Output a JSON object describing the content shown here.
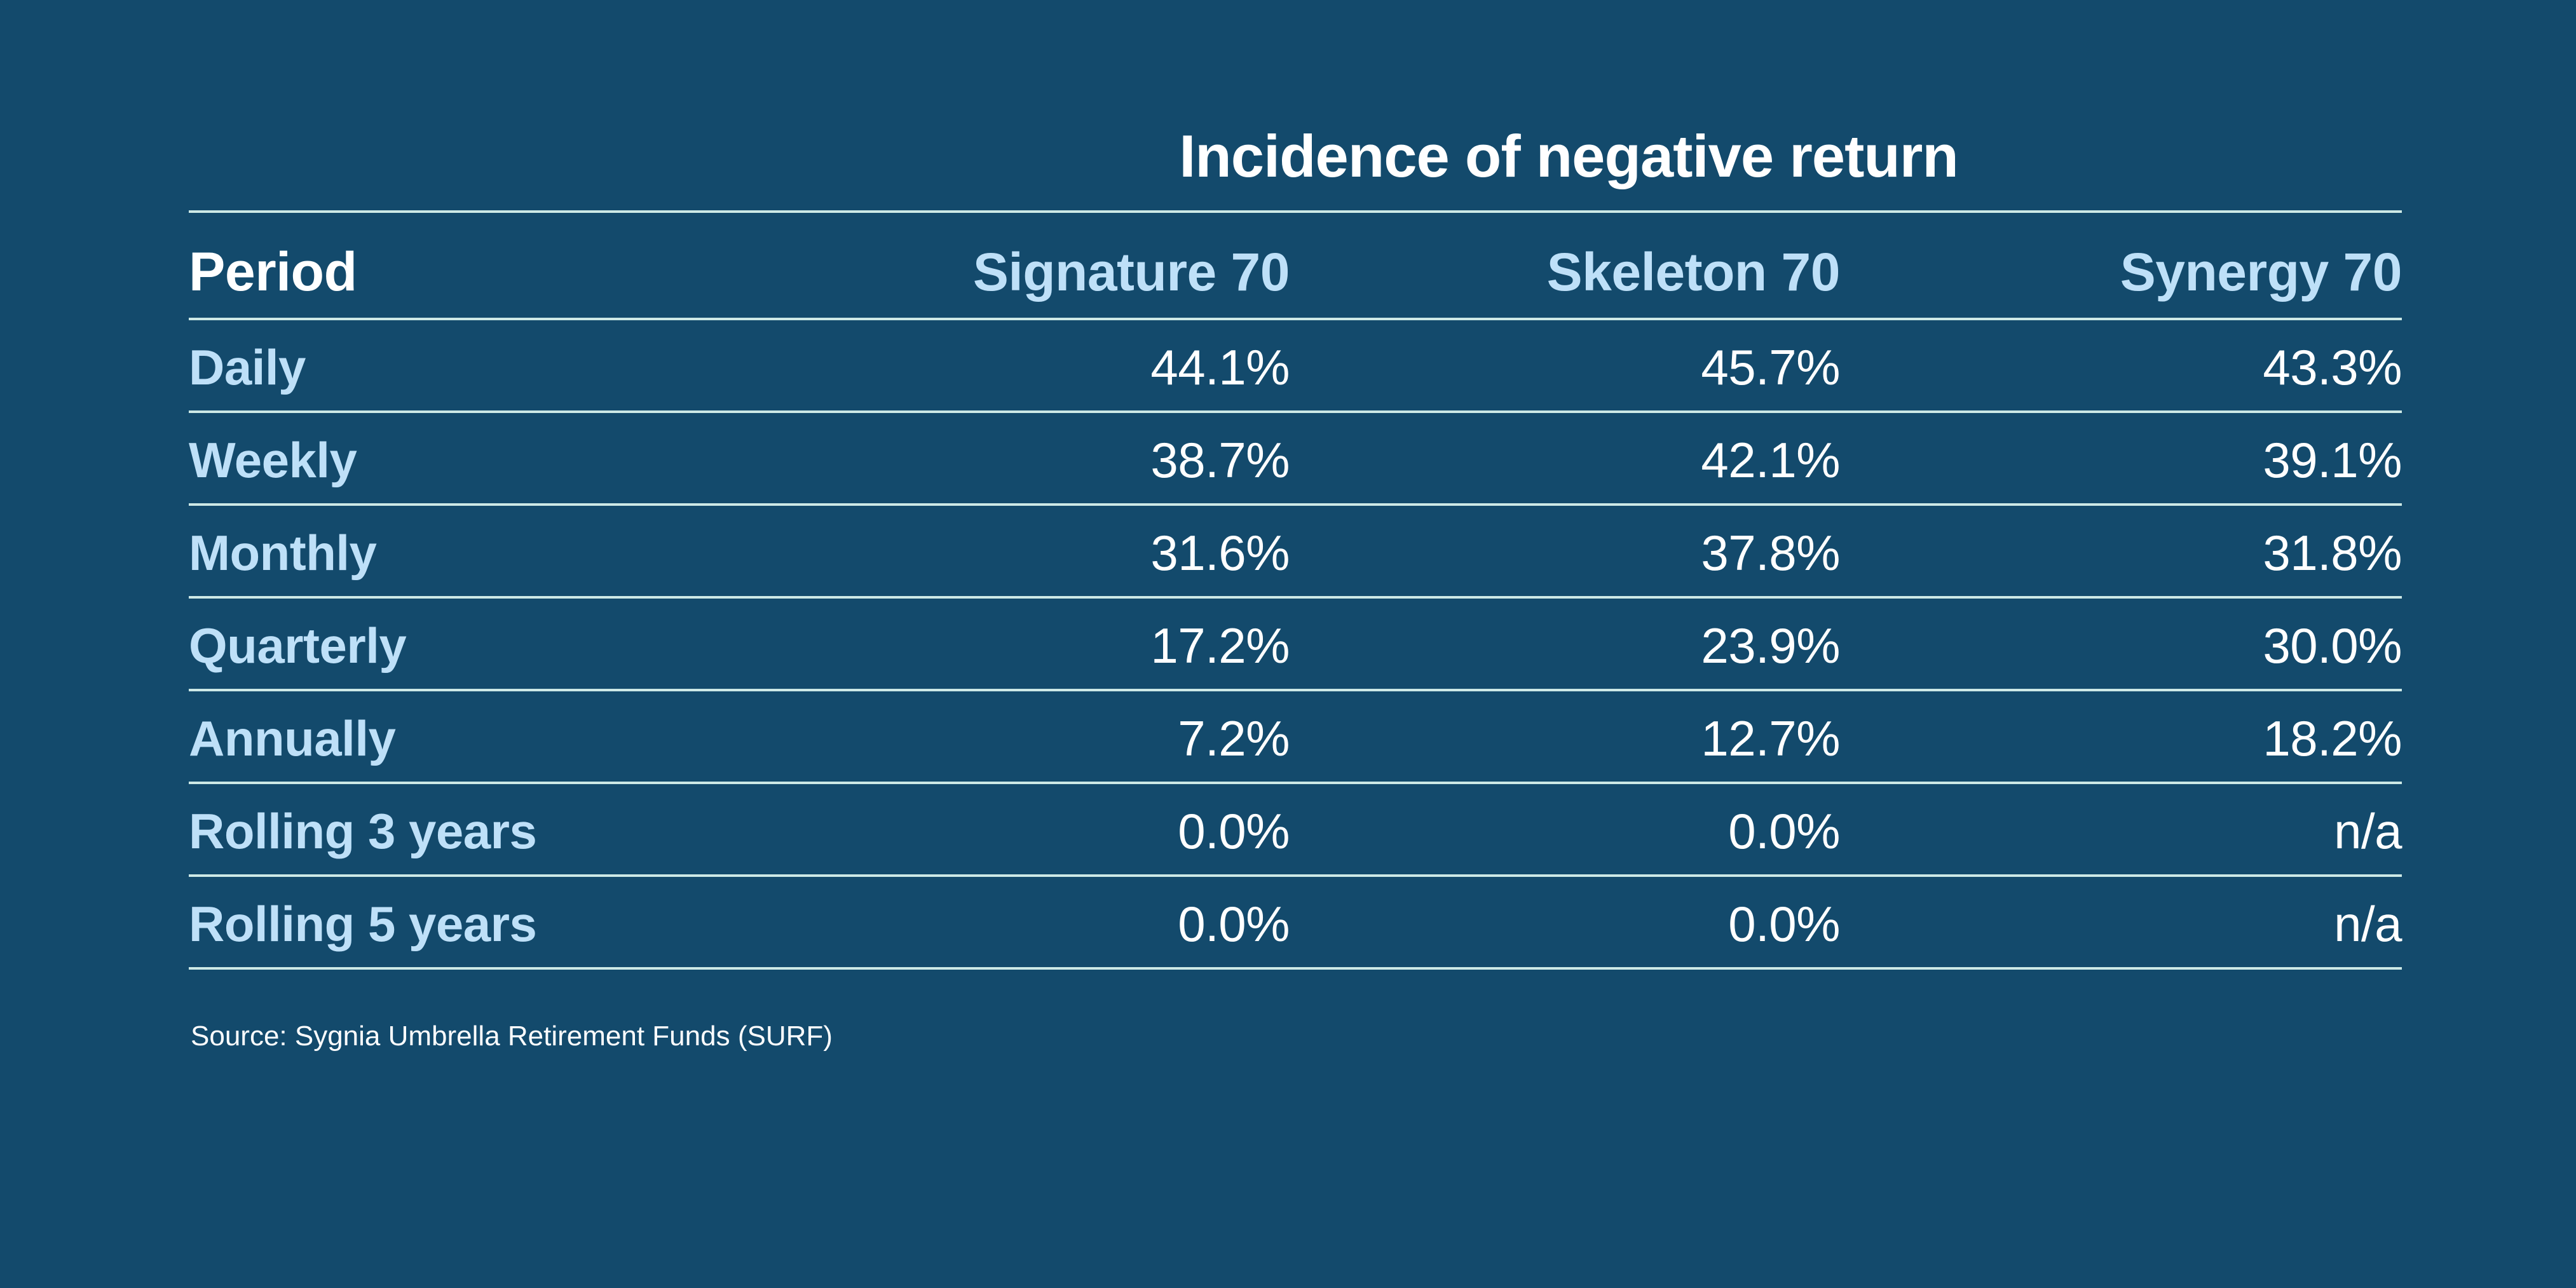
{
  "title": "Incidence of negative return",
  "source_note": "Source: Sygnia Umbrella Retirement Funds (SURF)",
  "colors": {
    "background": "#134A6C",
    "separator_line": "#CDE9E6",
    "label_light_blue": "#BEE0F8",
    "value_white": "#FFFFFF"
  },
  "chart_data": {
    "type": "table",
    "title": "Incidence of negative return",
    "columns": [
      "Period",
      "Signature 70",
      "Skeleton 70",
      "Synergy 70"
    ],
    "rows": [
      [
        "Daily",
        "44.1%",
        "45.7%",
        "43.3%"
      ],
      [
        "Weekly",
        "38.7%",
        "42.1%",
        "39.1%"
      ],
      [
        "Monthly",
        "31.6%",
        "37.8%",
        "31.8%"
      ],
      [
        "Quarterly",
        "17.2%",
        "23.9%",
        "30.0%"
      ],
      [
        "Annually",
        "7.2%",
        "12.7%",
        "18.2%"
      ],
      [
        "Rolling 3 years",
        "0.0%",
        "0.0%",
        "n/a"
      ],
      [
        "Rolling 5 years",
        "0.0%",
        "0.0%",
        "n/a"
      ]
    ],
    "layout_hints": {
      "value_alignment": "right",
      "row_label_alignment": "left",
      "grid": "horizontal separator lines only",
      "legend_position": "none"
    }
  }
}
